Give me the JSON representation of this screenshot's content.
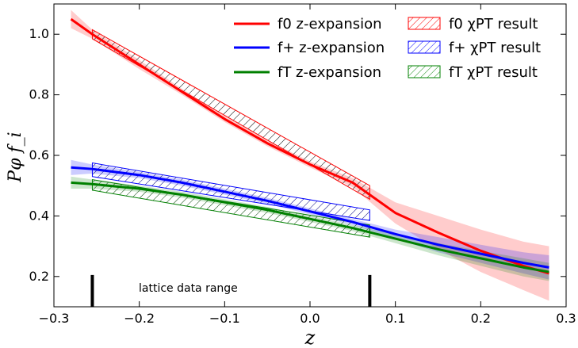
{
  "chart_data": {
    "type": "line",
    "xlabel": "z",
    "ylabel": "Pφ f_i",
    "xlim": [
      -0.3,
      0.3
    ],
    "ylim": [
      0.1,
      1.1
    ],
    "grid": false,
    "legend_position": "top-right",
    "x_ticks": [
      "−0.3",
      "−0.2",
      "−0.1",
      "0.0",
      "0.1",
      "0.2",
      "0.3"
    ],
    "x_tick_values": [
      -0.3,
      -0.2,
      -0.1,
      0.0,
      0.1,
      0.2,
      0.3
    ],
    "y_ticks": [
      "0.2",
      "0.4",
      "0.6",
      "0.8",
      "1.0"
    ],
    "y_tick_values": [
      0.2,
      0.4,
      0.6,
      0.8,
      1.0
    ],
    "annotation": "lattice data range",
    "lattice_range": [
      -0.255,
      0.07
    ],
    "colors": {
      "f0": "#ff0000",
      "fplus": "#0000ff",
      "fT": "#008000"
    },
    "series": [
      {
        "key": "f0",
        "name": "f0 z-expansion",
        "x": [
          -0.28,
          -0.255,
          -0.2,
          -0.15,
          -0.1,
          -0.05,
          0.0,
          0.05,
          0.1,
          0.15,
          0.2,
          0.25,
          0.28
        ],
        "y": [
          1.05,
          1.0,
          0.9,
          0.81,
          0.72,
          0.64,
          0.57,
          0.51,
          0.41,
          0.345,
          0.285,
          0.235,
          0.21
        ],
        "band_lo": [
          1.02,
          0.985,
          0.885,
          0.8,
          0.71,
          0.63,
          0.56,
          0.495,
          0.375,
          0.29,
          0.215,
          0.155,
          0.12
        ],
        "band_hi": [
          1.08,
          1.015,
          0.915,
          0.82,
          0.73,
          0.65,
          0.58,
          0.525,
          0.445,
          0.4,
          0.355,
          0.315,
          0.3
        ]
      },
      {
        "key": "fplus",
        "name": "f+ z-expansion",
        "x": [
          -0.28,
          -0.255,
          -0.2,
          -0.15,
          -0.1,
          -0.05,
          0.0,
          0.05,
          0.1,
          0.15,
          0.2,
          0.25,
          0.28
        ],
        "y": [
          0.56,
          0.555,
          0.535,
          0.51,
          0.48,
          0.45,
          0.415,
          0.38,
          0.34,
          0.305,
          0.275,
          0.245,
          0.23
        ],
        "band_lo": [
          0.535,
          0.54,
          0.525,
          0.5,
          0.47,
          0.44,
          0.405,
          0.37,
          0.325,
          0.28,
          0.245,
          0.21,
          0.19
        ],
        "band_hi": [
          0.585,
          0.57,
          0.545,
          0.52,
          0.49,
          0.46,
          0.425,
          0.39,
          0.355,
          0.33,
          0.305,
          0.28,
          0.27
        ]
      },
      {
        "key": "fT",
        "name": "fT z-expansion",
        "x": [
          -0.28,
          -0.255,
          -0.2,
          -0.15,
          -0.1,
          -0.05,
          0.0,
          0.05,
          0.1,
          0.15,
          0.2,
          0.25,
          0.28
        ],
        "y": [
          0.51,
          0.505,
          0.49,
          0.47,
          0.445,
          0.42,
          0.39,
          0.36,
          0.325,
          0.29,
          0.26,
          0.23,
          0.215
        ],
        "band_lo": [
          0.49,
          0.49,
          0.48,
          0.46,
          0.435,
          0.41,
          0.38,
          0.35,
          0.31,
          0.27,
          0.235,
          0.2,
          0.185
        ],
        "band_hi": [
          0.53,
          0.52,
          0.5,
          0.48,
          0.455,
          0.43,
          0.4,
          0.37,
          0.34,
          0.31,
          0.285,
          0.26,
          0.245
        ]
      }
    ],
    "chipt": [
      {
        "key": "f0",
        "name": "f0 χPT result",
        "x0": -0.255,
        "x1": 0.07,
        "lo": [
          0.985,
          0.455
        ],
        "hi": [
          1.015,
          0.5
        ]
      },
      {
        "key": "fplus",
        "name": "f+ χPT result",
        "x0": -0.255,
        "x1": 0.07,
        "lo": [
          0.53,
          0.385
        ],
        "hi": [
          0.575,
          0.42
        ]
      },
      {
        "key": "fT",
        "name": "fT χPT result",
        "x0": -0.255,
        "x1": 0.07,
        "lo": [
          0.485,
          0.33
        ],
        "hi": [
          0.52,
          0.37
        ]
      }
    ]
  }
}
